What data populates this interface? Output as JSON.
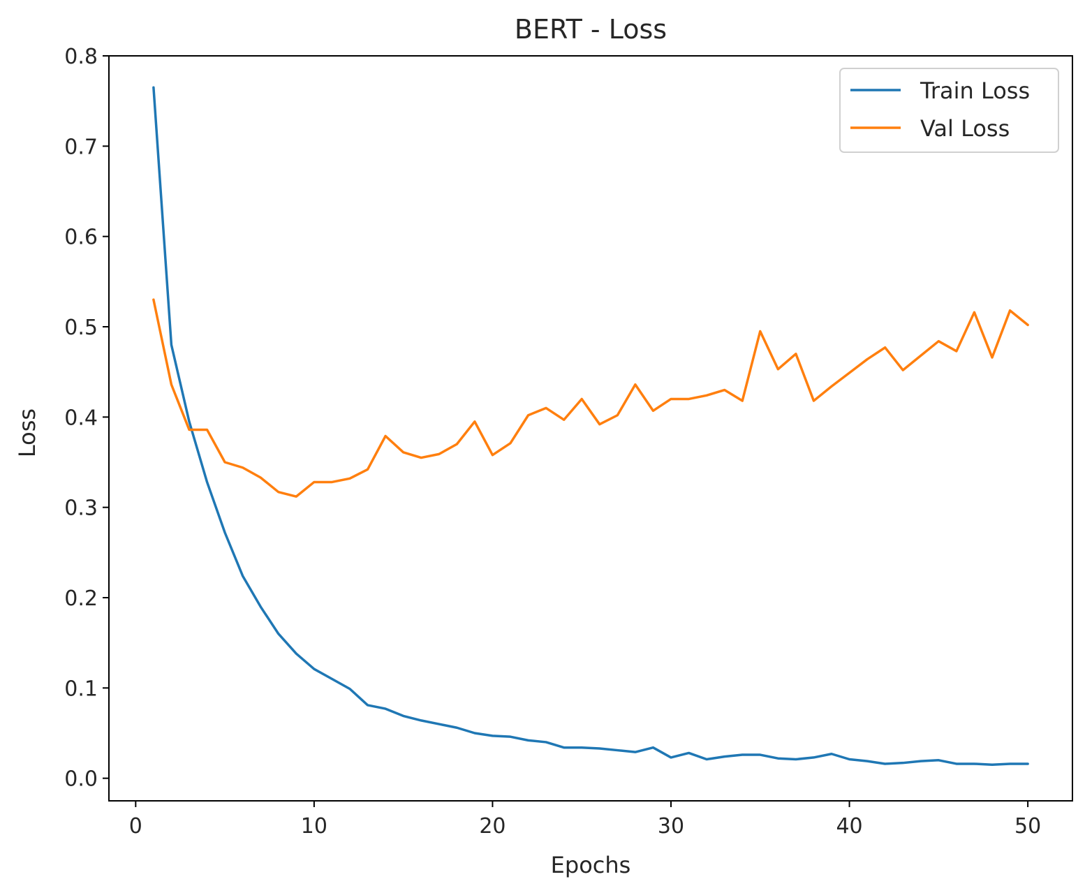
{
  "chart_data": {
    "type": "line",
    "title": "BERT - Loss",
    "xlabel": "Epochs",
    "ylabel": "Loss",
    "xlim": [
      -1.5,
      52.5
    ],
    "ylim": [
      -0.025,
      0.8
    ],
    "xticks": [
      0,
      10,
      20,
      30,
      40,
      50
    ],
    "xtick_labels": [
      "0",
      "10",
      "20",
      "30",
      "40",
      "50"
    ],
    "yticks": [
      0.0,
      0.1,
      0.2,
      0.3,
      0.4,
      0.5,
      0.6,
      0.7,
      0.8
    ],
    "ytick_labels": [
      "0.0",
      "0.1",
      "0.2",
      "0.3",
      "0.4",
      "0.5",
      "0.6",
      "0.7",
      "0.8"
    ],
    "grid": false,
    "legend_position": "top-right",
    "x": [
      1,
      2,
      3,
      4,
      5,
      6,
      7,
      8,
      9,
      10,
      11,
      12,
      13,
      14,
      15,
      16,
      17,
      18,
      19,
      20,
      21,
      22,
      23,
      24,
      25,
      26,
      27,
      28,
      29,
      30,
      31,
      32,
      33,
      34,
      35,
      36,
      37,
      38,
      39,
      40,
      41,
      42,
      43,
      44,
      45,
      46,
      47,
      48,
      49,
      50
    ],
    "series": [
      {
        "name": "Train Loss",
        "color": "#1f77b4",
        "values": [
          0.765,
          0.48,
          0.395,
          0.328,
          0.272,
          0.224,
          0.19,
          0.16,
          0.138,
          0.121,
          0.11,
          0.099,
          0.081,
          0.077,
          0.069,
          0.064,
          0.06,
          0.056,
          0.05,
          0.047,
          0.046,
          0.042,
          0.04,
          0.034,
          0.034,
          0.033,
          0.031,
          0.029,
          0.034,
          0.023,
          0.028,
          0.021,
          0.024,
          0.026,
          0.026,
          0.022,
          0.021,
          0.023,
          0.027,
          0.021,
          0.019,
          0.016,
          0.017,
          0.019,
          0.02,
          0.016,
          0.016,
          0.015,
          0.016,
          0.016
        ]
      },
      {
        "name": "Val Loss",
        "color": "#ff7f0e",
        "values": [
          0.53,
          0.436,
          0.386,
          0.386,
          0.35,
          0.344,
          0.333,
          0.317,
          0.312,
          0.328,
          0.328,
          0.332,
          0.342,
          0.379,
          0.361,
          0.355,
          0.359,
          0.37,
          0.395,
          0.358,
          0.371,
          0.402,
          0.41,
          0.397,
          0.42,
          0.392,
          0.402,
          0.436,
          0.407,
          0.42,
          0.42,
          0.424,
          0.43,
          0.418,
          0.495,
          0.453,
          0.47,
          0.418,
          0.434,
          0.449,
          0.464,
          0.477,
          0.452,
          0.468,
          0.484,
          0.473,
          0.516,
          0.466,
          0.518,
          0.502
        ]
      }
    ]
  }
}
